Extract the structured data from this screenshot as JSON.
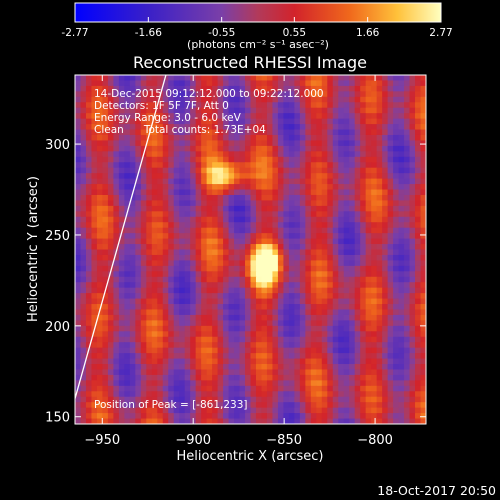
{
  "chart_data": {
    "type": "heatmap",
    "title": "Reconstructed RHESSI Image",
    "xlabel": "Heliocentric X (arcsec)",
    "ylabel": "Heliocentric Y (arcsec)",
    "xlim": [
      -965,
      -772
    ],
    "ylim": [
      146,
      338
    ],
    "xticks": [
      -950,
      -900,
      -850,
      -800
    ],
    "yticks": [
      150,
      200,
      250,
      300
    ],
    "colorbar": {
      "range": [
        -2.77,
        2.77
      ],
      "ticks": [
        "-2.77",
        "-1.66",
        "-0.55",
        "0.55",
        "1.66",
        "2.77"
      ],
      "label": "(photons cm⁻² s⁻¹ asec⁻²)"
    },
    "annotations": [
      "14-Dec-2015 09:12:12.000 to 09:22:12.000",
      "Detectors: 1F 5F 7F, Att 0",
      "Energy Range: 3.0 - 6.0 keV",
      "Clean      Total counts: 1.73E+04"
    ],
    "peak_label": "Position of Peak = [-861,233]",
    "peak": [
      -861,
      233
    ],
    "limb_line": [
      [
        -965,
        160
      ],
      [
        -915,
        338
      ]
    ],
    "blobs": [
      {
        "x": -861,
        "y": 233,
        "sx": 9,
        "sy": 12,
        "v": 3.4
      },
      {
        "x": -882,
        "y": 282,
        "sx": 12,
        "sy": 9,
        "v": 2.9
      },
      {
        "x": -857,
        "y": 238,
        "sx": 5,
        "sy": 6,
        "v": 0.8
      }
    ]
  },
  "footer": {
    "date": "18-Oct-2017 20:50"
  }
}
